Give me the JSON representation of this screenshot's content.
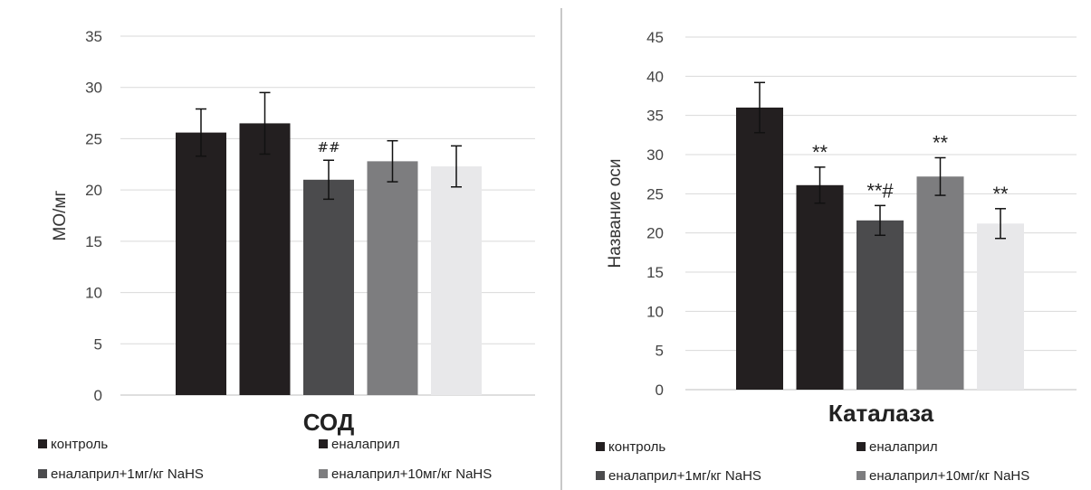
{
  "chart_data": [
    {
      "type": "bar",
      "title": "СОД",
      "ylabel": "МО/мг",
      "xlabel": "",
      "ylim": [
        0,
        35
      ],
      "yticks": [
        0,
        5,
        10,
        15,
        20,
        25,
        30,
        35
      ],
      "grid": true,
      "categories": [
        "контроль",
        "еналаприл",
        "еналаприл+1мг/кг NaHS",
        "еналаприл+10мг/кг NaHS",
        ""
      ],
      "values": [
        25.6,
        26.5,
        21.0,
        22.8,
        22.3
      ],
      "errors": [
        2.3,
        3.0,
        1.9,
        2.0,
        2.0
      ],
      "colors": [
        "#231f20",
        "#231f20",
        "#4b4b4d",
        "#7d7d7f",
        "#e8e8ea"
      ],
      "annotations": [
        "",
        "",
        "##",
        "",
        ""
      ],
      "legend": {
        "position": "bottom",
        "entries": [
          {
            "label": "контроль",
            "color": "#231f20"
          },
          {
            "label": "еналаприл",
            "color": "#231f20"
          },
          {
            "label": "еналаприл+1мг/кг NaHS",
            "color": "#4b4b4d"
          },
          {
            "label": "еналаприл+10мг/кг NaHS",
            "color": "#7d7d7f"
          }
        ]
      }
    },
    {
      "type": "bar",
      "title": "Каталаза",
      "ylabel": "Название оси",
      "xlabel": "",
      "ylim": [
        0,
        45
      ],
      "yticks": [
        0,
        5,
        10,
        15,
        20,
        25,
        30,
        35,
        40,
        45
      ],
      "grid": true,
      "categories": [
        "контроль",
        "еналаприл",
        "еналаприл+1мг/кг NaHS",
        "еналаприл+10мг/кг NaHS",
        ""
      ],
      "values": [
        36.0,
        26.1,
        21.6,
        27.2,
        21.2
      ],
      "errors": [
        3.2,
        2.3,
        1.9,
        2.4,
        1.9
      ],
      "colors": [
        "#231f20",
        "#231f20",
        "#4b4b4d",
        "#7d7d7f",
        "#e8e8ea"
      ],
      "annotations": [
        "",
        "**",
        "**#",
        "**",
        "**"
      ],
      "legend": {
        "position": "bottom",
        "entries": [
          {
            "label": "контроль",
            "color": "#231f20"
          },
          {
            "label": "еналаприл",
            "color": "#231f20"
          },
          {
            "label": "еналаприл+1мг/кг NaHS",
            "color": "#4b4b4d"
          },
          {
            "label": "еналаприл+10мг/кг NaHS",
            "color": "#7d7d7f"
          }
        ]
      }
    }
  ]
}
